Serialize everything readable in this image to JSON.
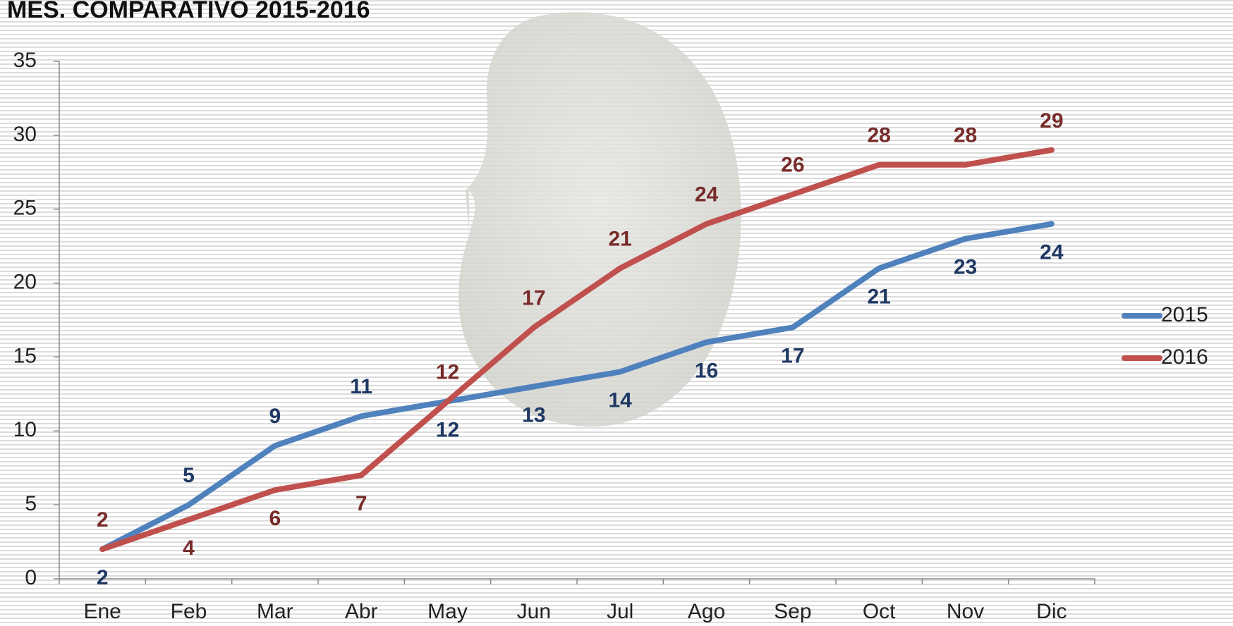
{
  "chart_data": {
    "type": "line",
    "title": "MES. COMPARATIVO 2015-2016",
    "categories": [
      "Ene",
      "Feb",
      "Mar",
      "Abr",
      "May",
      "Jun",
      "Jul",
      "Ago",
      "Sep",
      "Oct",
      "Nov",
      "Dic"
    ],
    "series": [
      {
        "name": "2015",
        "color": "#4f81bd",
        "label_color": "#1f3864",
        "values": [
          2,
          5,
          9,
          11,
          12,
          13,
          14,
          16,
          17,
          21,
          23,
          24
        ]
      },
      {
        "name": "2016",
        "color": "#c0504d",
        "label_color": "#772c2a",
        "values": [
          2,
          4,
          6,
          7,
          12,
          17,
          21,
          24,
          26,
          28,
          28,
          29
        ]
      }
    ],
    "ylim": [
      0,
      35
    ],
    "yticks": [
      0,
      5,
      10,
      15,
      20,
      25,
      30,
      35
    ],
    "legend": "right"
  }
}
